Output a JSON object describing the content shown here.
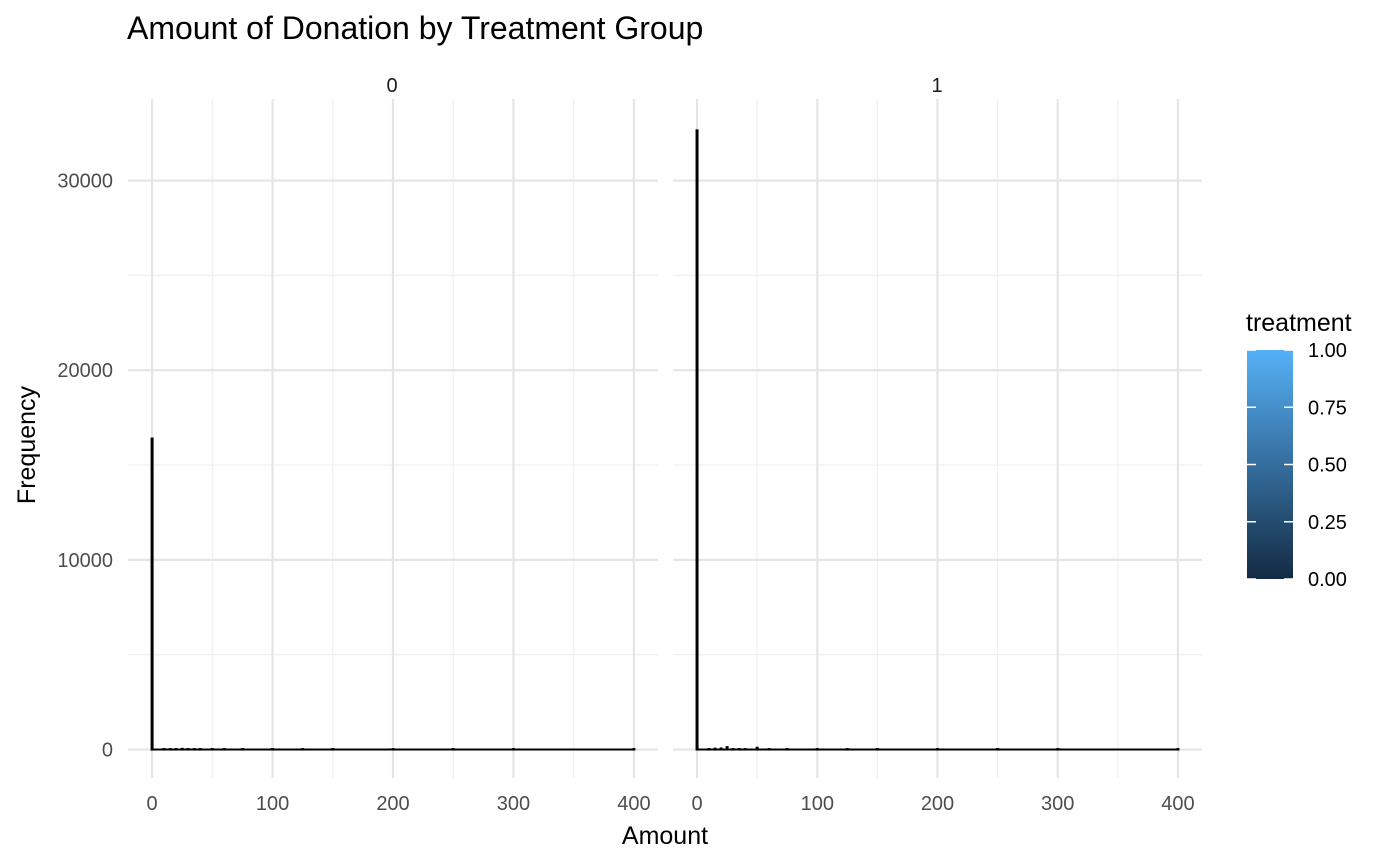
{
  "chart_data": {
    "type": "bar",
    "title": "Amount of Donation by Treatment Group",
    "xlabel": "Amount",
    "ylabel": "Frequency",
    "xlim": [
      -20,
      420
    ],
    "ylim": [
      -1500,
      34300
    ],
    "x_ticks": [
      0,
      100,
      200,
      300,
      400
    ],
    "y_ticks": [
      0,
      10000,
      20000,
      30000
    ],
    "grid": true,
    "panels": [
      {
        "strip": "0",
        "bars": [
          {
            "x": 0,
            "count": 16450
          },
          {
            "x": 10,
            "count": 40
          },
          {
            "x": 15,
            "count": 60
          },
          {
            "x": 20,
            "count": 60
          },
          {
            "x": 25,
            "count": 90
          },
          {
            "x": 30,
            "count": 20
          },
          {
            "x": 35,
            "count": 25
          },
          {
            "x": 40,
            "count": 15
          },
          {
            "x": 50,
            "count": 80
          },
          {
            "x": 60,
            "count": 10
          },
          {
            "x": 75,
            "count": 10
          },
          {
            "x": 100,
            "count": 30
          },
          {
            "x": 125,
            "count": 5
          },
          {
            "x": 150,
            "count": 5
          },
          {
            "x": 200,
            "count": 5
          },
          {
            "x": 250,
            "count": 3
          },
          {
            "x": 300,
            "count": 2
          },
          {
            "x": 400,
            "count": 1
          }
        ]
      },
      {
        "strip": "1",
        "bars": [
          {
            "x": 0,
            "count": 32700
          },
          {
            "x": 10,
            "count": 70
          },
          {
            "x": 15,
            "count": 100
          },
          {
            "x": 20,
            "count": 110
          },
          {
            "x": 25,
            "count": 180
          },
          {
            "x": 30,
            "count": 40
          },
          {
            "x": 35,
            "count": 60
          },
          {
            "x": 40,
            "count": 30
          },
          {
            "x": 50,
            "count": 150
          },
          {
            "x": 60,
            "count": 15
          },
          {
            "x": 75,
            "count": 20
          },
          {
            "x": 100,
            "count": 80
          },
          {
            "x": 125,
            "count": 10
          },
          {
            "x": 150,
            "count": 8
          },
          {
            "x": 200,
            "count": 8
          },
          {
            "x": 250,
            "count": 5
          },
          {
            "x": 300,
            "count": 3
          },
          {
            "x": 400,
            "count": 2
          }
        ]
      }
    ],
    "legend": {
      "title": "treatment",
      "position": "right",
      "type": "colorbar",
      "color_low": "#132B43",
      "color_high": "#56B1F7",
      "breaks": [
        "1.00",
        "0.75",
        "0.50",
        "0.25",
        "0.00"
      ]
    },
    "bar_fill": "#000000"
  }
}
